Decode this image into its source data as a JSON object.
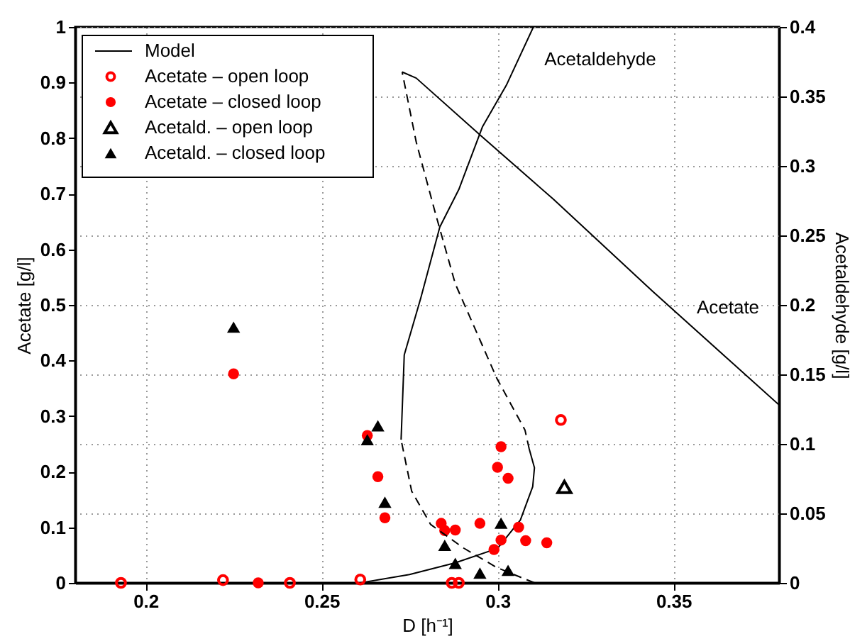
{
  "chart_data": {
    "type": "scatter",
    "xlabel": "D [h⁻¹]",
    "ylabel": "Acetate [g/l]",
    "y2label": "Acetaldehyde [g/l]",
    "xlim": [
      0.18,
      0.38
    ],
    "xticks": [
      0.2,
      0.25,
      0.3,
      0.35
    ],
    "ylim": [
      0,
      1
    ],
    "yticks": [
      0,
      0.1,
      0.2,
      0.3,
      0.4,
      0.5,
      0.6,
      0.7,
      0.8,
      0.9,
      1
    ],
    "y2lim": [
      0,
      0.4
    ],
    "y2ticks": [
      0,
      0.05,
      0.1,
      0.15,
      0.2,
      0.25,
      0.3,
      0.35,
      0.4
    ],
    "grid": true,
    "legend": "top left",
    "annotations": [
      "Acetaldehyde",
      "Acetate"
    ],
    "series": [
      {
        "name": "Model",
        "type": "line",
        "color": "#000000",
        "line_style": "solid",
        "x": [
          0.261,
          0.275,
          0.288,
          0.3,
          0.3065,
          0.31,
          0.3105,
          0.309
        ],
        "values": [
          0,
          0.015,
          0.036,
          0.062,
          0.113,
          0.173,
          0.207,
          0.241
        ]
      },
      {
        "type": "line",
        "color": "#000000",
        "line_style": "dashed",
        "x": [
          0.309,
          0.3078,
          0.2998,
          0.288,
          0.2823,
          0.2769,
          0.2729
        ],
        "values": [
          0.241,
          0.275,
          0.368,
          0.538,
          0.666,
          0.793,
          0.919
        ]
      },
      {
        "type": "line",
        "color": "#000000",
        "line_style": "solid",
        "x": [
          0.2729,
          0.2769,
          0.2957,
          0.3159,
          0.344,
          0.38
        ],
        "values": [
          0.919,
          0.908,
          0.802,
          0.69,
          0.525,
          0.32
        ]
      },
      {
        "type": "line",
        "color": "#000000",
        "line_style": "dashed",
        "axis": "y2",
        "x": [
          0.3105,
          0.2998,
          0.2904,
          0.281,
          0.2756,
          0.2726
        ],
        "values": [
          0,
          0.011,
          0.025,
          0.042,
          0.066,
          0.103
        ]
      },
      {
        "type": "line",
        "color": "#000000",
        "line_style": "solid",
        "axis": "y2",
        "x": [
          0.2726,
          0.2735,
          0.2782,
          0.2836,
          0.289,
          0.2957,
          0.3025,
          0.3102
        ],
        "values": [
          0.103,
          0.164,
          0.205,
          0.256,
          0.283,
          0.328,
          0.358,
          0.4
        ]
      },
      {
        "name": "Acetate – open loop",
        "marker": "circle-open",
        "color": "#ff0000",
        "x": [
          0.193,
          0.222,
          0.241,
          0.261,
          0.287,
          0.289,
          0.318
        ],
        "values": [
          0,
          0.005,
          0,
          0.006,
          0,
          0,
          0.293
        ]
      },
      {
        "name": "Acetate – closed loop",
        "marker": "circle",
        "color": "#ff0000",
        "x": [
          0.225,
          0.232,
          0.263,
          0.266,
          0.268,
          0.284,
          0.285,
          0.288,
          0.295,
          0.299,
          0.301,
          0.3,
          0.301,
          0.303,
          0.306,
          0.308,
          0.314
        ],
        "values": [
          0.376,
          0,
          0.265,
          0.191,
          0.117,
          0.107,
          0.094,
          0.095,
          0.107,
          0.06,
          0.077,
          0.208,
          0.245,
          0.188,
          0.1,
          0.076,
          0.072
        ]
      },
      {
        "name": "Acetald. – open loop",
        "marker": "triangle-open",
        "color": "#000000",
        "axis": "y2",
        "x": [
          0.319
        ],
        "values": [
          0.069
        ]
      },
      {
        "name": "Acetald. – closed loop",
        "marker": "triangle",
        "color": "#000000",
        "axis": "y2",
        "x": [
          0.225,
          0.263,
          0.266,
          0.268,
          0.285,
          0.288,
          0.295,
          0.301,
          0.303
        ],
        "values": [
          0.184,
          0.103,
          0.113,
          0.058,
          0.027,
          0.014,
          0.007,
          0.043,
          0.009
        ]
      }
    ]
  }
}
